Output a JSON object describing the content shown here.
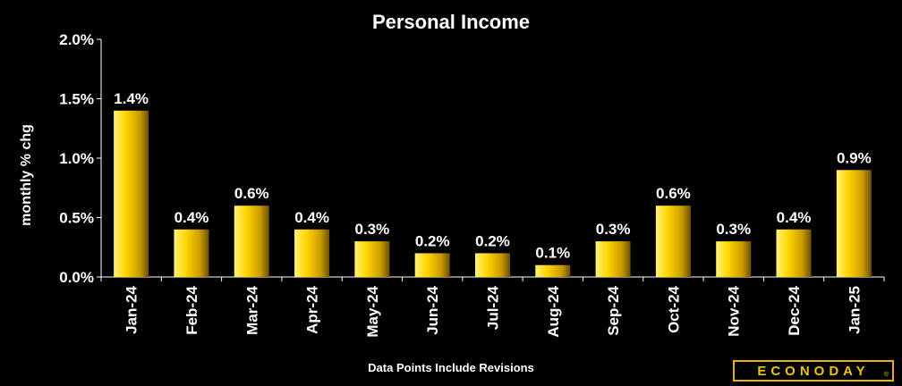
{
  "chart_data": {
    "type": "bar",
    "title": "Personal Income",
    "ylabel": "monthly % chg",
    "xlabel": "",
    "categories": [
      "Jan-24",
      "Feb-24",
      "Mar-24",
      "Apr-24",
      "May-24",
      "Jun-24",
      "Jul-24",
      "Aug-24",
      "Sep-24",
      "Oct-24",
      "Nov-24",
      "Dec-24",
      "Jan-25"
    ],
    "values": [
      1.4,
      0.4,
      0.6,
      0.4,
      0.3,
      0.2,
      0.2,
      0.1,
      0.3,
      0.6,
      0.3,
      0.4,
      0.9
    ],
    "data_labels": [
      "1.4%",
      "0.4%",
      "0.6%",
      "0.4%",
      "0.3%",
      "0.2%",
      "0.2%",
      "0.1%",
      "0.3%",
      "0.6%",
      "0.3%",
      "0.4%",
      "0.9%"
    ],
    "yticks": [
      0,
      0.5,
      1.0,
      1.5,
      2.0
    ],
    "ytick_labels": [
      "0.0%",
      "0.5%",
      "1.0%",
      "1.5%",
      "2.0%"
    ],
    "ylim": [
      0,
      2.0
    ],
    "grid": false,
    "legend": "none",
    "bar_color": "#f5c400",
    "background": "#000000"
  },
  "footnote": "Data Points Include Revisions",
  "logo": {
    "text": "ECONODAY",
    "mark": "®",
    "color": "#f2c200"
  }
}
